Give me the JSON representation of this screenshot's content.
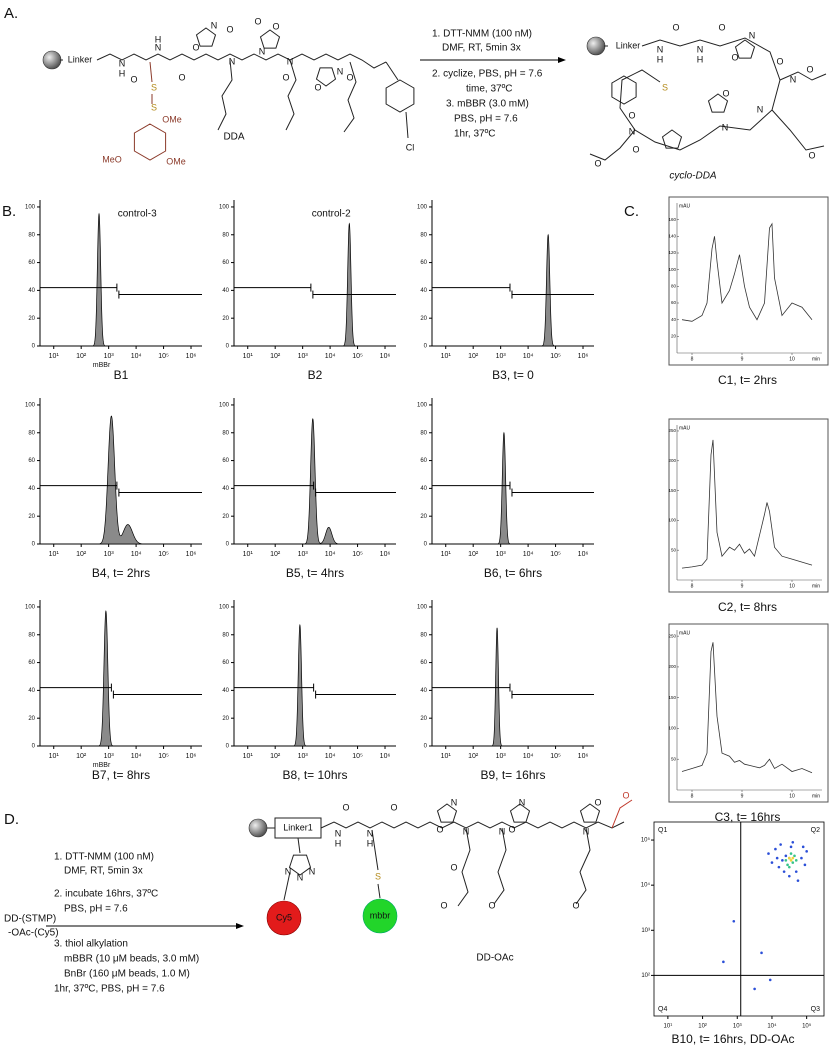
{
  "panel_a": {
    "label": "A.",
    "steps": [
      "1. DTT-NMM (100 nM)",
      "DMF, RT, 5min 3x",
      "2. cyclize, PBS, pH = 7.6",
      "time, 37ºC",
      "3. mBBR (3.0 mM)",
      "PBS, pH = 7.6",
      "1hr,  37ºC"
    ],
    "reactant": "DDA",
    "product": "cyclo-DDA",
    "reactant_labels": [
      "Linker",
      "N",
      "H",
      "O",
      "N",
      "H",
      "O",
      "N",
      "O",
      "N",
      "O",
      "O",
      "N",
      "N",
      "O",
      "O",
      "N",
      "O",
      "O",
      "S",
      "S",
      "OMe",
      "MeO",
      "OMe",
      "Cl"
    ],
    "product_labels": [
      "Linker",
      "N",
      "H",
      "O",
      "N",
      "H",
      "O",
      "N",
      "O",
      "S",
      "O",
      "N",
      "O",
      "N",
      "O",
      "N",
      "O",
      "N",
      "O",
      "O",
      "O"
    ]
  },
  "panel_b": {
    "label": "B.",
    "xlim": [
      0.5,
      6.4
    ],
    "ylim": [
      0,
      105
    ],
    "xticks": [
      {
        "value": 1,
        "label": "10¹"
      },
      {
        "value": 2,
        "label": "10²"
      },
      {
        "value": 3,
        "label": "10³"
      },
      {
        "value": 4,
        "label": "10⁴"
      },
      {
        "value": 5,
        "label": "10⁵"
      },
      {
        "value": 6,
        "label": "10⁶"
      }
    ],
    "yticks": [
      0,
      20,
      40,
      60,
      80,
      100
    ],
    "gate_levels": [
      42,
      37
    ],
    "color": "#8a8a8a",
    "plots": [
      {
        "caption": "B1",
        "inner_label": "control-3",
        "axis_label": "mBBr",
        "center": 2.65,
        "height": 95,
        "spread": 0.06,
        "split": 3.3
      },
      {
        "caption": "B2",
        "inner_label": "control-2",
        "center": 4.7,
        "height": 88,
        "spread": 0.06,
        "split": 3.3
      },
      {
        "caption": "B3, t= 0",
        "center": 4.73,
        "height": 80,
        "spread": 0.06,
        "split": 3.34
      },
      {
        "caption": "B4, t= 2hrs",
        "center": 3.1,
        "height": 92,
        "spread": 0.12,
        "split": 3.3,
        "shoulder": {
          "center": 3.7,
          "height": 14
        }
      },
      {
        "caption": "B5, t= 4hrs",
        "center": 3.37,
        "height": 90,
        "spread": 0.08,
        "split": 3.4,
        "shoulder": {
          "center": 3.95,
          "height": 12
        }
      },
      {
        "caption": "B6, t= 6hrs",
        "center": 3.12,
        "height": 80,
        "spread": 0.06,
        "split": 3.34
      },
      {
        "caption": "B7, t= 8hrs",
        "axis_label": "mBBr",
        "center": 2.9,
        "height": 97,
        "spread": 0.07,
        "split": 3.1
      },
      {
        "caption": "B8, t= 10hrs",
        "center": 2.9,
        "height": 87,
        "spread": 0.06,
        "split": 3.4
      },
      {
        "caption": "B9, t= 16hrs",
        "center": 2.87,
        "height": 85,
        "spread": 0.05,
        "split": 3.34
      }
    ]
  },
  "panel_c": {
    "label": "C.",
    "y_unit": "mAU",
    "x_unit": "min",
    "xlim": [
      7.7,
      10.6
    ],
    "xticks": [
      8,
      9,
      10
    ],
    "color": "#333333",
    "plots": [
      {
        "caption": "C1, t= 2hrs",
        "ylim": [
          0,
          180
        ],
        "yticks": [
          20,
          40,
          60,
          80,
          100,
          120,
          140,
          160
        ],
        "x": [
          7.8,
          8.0,
          8.2,
          8.3,
          8.4,
          8.45,
          8.5,
          8.6,
          8.75,
          8.85,
          8.95,
          9.05,
          9.15,
          9.3,
          9.45,
          9.55,
          9.6,
          9.65,
          9.8,
          10.0,
          10.2,
          10.4
        ],
        "values": [
          40,
          38,
          45,
          60,
          125,
          140,
          110,
          60,
          75,
          95,
          118,
          80,
          55,
          40,
          60,
          150,
          155,
          90,
          45,
          60,
          55,
          40
        ]
      },
      {
        "caption": "C2, t= 8hrs",
        "ylim": [
          0,
          260
        ],
        "yticks": [
          50,
          100,
          150,
          200,
          250
        ],
        "x": [
          7.8,
          8.0,
          8.2,
          8.3,
          8.38,
          8.42,
          8.5,
          8.6,
          8.75,
          8.85,
          8.95,
          9.05,
          9.15,
          9.25,
          9.35,
          9.45,
          9.5,
          9.55,
          9.65,
          9.8,
          10.0,
          10.2,
          10.4
        ],
        "values": [
          20,
          22,
          25,
          35,
          210,
          235,
          80,
          40,
          55,
          50,
          60,
          45,
          52,
          40,
          75,
          110,
          130,
          115,
          55,
          40,
          35,
          30,
          25
        ]
      },
      {
        "caption": "C3, t= 16hrs",
        "ylim": [
          0,
          260
        ],
        "yticks": [
          50,
          100,
          150,
          200,
          250
        ],
        "x": [
          7.8,
          8.0,
          8.2,
          8.3,
          8.38,
          8.42,
          8.5,
          8.6,
          8.75,
          8.85,
          8.95,
          9.05,
          9.15,
          9.25,
          9.35,
          9.45,
          9.5,
          9.55,
          9.65,
          9.8,
          10.0,
          10.2,
          10.4
        ],
        "values": [
          30,
          35,
          40,
          60,
          225,
          240,
          120,
          60,
          55,
          45,
          48,
          42,
          40,
          38,
          36,
          40,
          45,
          50,
          35,
          42,
          30,
          35,
          28
        ]
      }
    ]
  },
  "panel_d": {
    "label": "D.",
    "reactant": [
      "DD-(STMP)",
      "-OAc-(Cy5)"
    ],
    "steps": [
      "1. DTT-NMM (100 nM)",
      "DMF, RT, 5min 3x",
      "2. incubate 16hrs, 37ºC",
      "PBS, pH = 7.6",
      "3. thiol alkylation",
      "mBBR (10 μM beads, 3.0 mM)",
      "BnBr (160 μM beads, 1.0 M)",
      "1hr, 37ºC, PBS, pH = 7.6"
    ],
    "product": "DD-OAc",
    "product_labels": [
      "Linker1",
      "N",
      "H",
      "O",
      "N",
      "H",
      "O",
      "N",
      "O",
      "N",
      "O",
      "O",
      "N",
      "O",
      "N",
      "O",
      "O",
      "N",
      "O",
      "N",
      "N",
      "N",
      "S",
      "Cy5",
      "mbbr"
    ],
    "scatter": {
      "caption": "B10, t= 16hrs, DD-OAc",
      "xlim": [
        0.6,
        5.5
      ],
      "ylim": [
        1.1,
        5.4
      ],
      "xticks": [
        {
          "value": 1,
          "label": "10¹"
        },
        {
          "value": 2,
          "label": "10²"
        },
        {
          "value": 3,
          "label": "10³"
        },
        {
          "value": 4,
          "label": "10⁴"
        },
        {
          "value": 5,
          "label": "10⁵"
        }
      ],
      "yticks": [
        {
          "value": 2,
          "label": "10²"
        },
        {
          "value": 3,
          "label": "10³"
        },
        {
          "value": 4,
          "label": "10⁴"
        },
        {
          "value": 5,
          "label": "10⁵"
        }
      ],
      "quadrant_x": 3.1,
      "quadrant_y": 2.0,
      "quadrants": [
        "Q1",
        "Q2",
        "Q3",
        "Q4"
      ],
      "series": [
        {
          "color": "#2b4fd8",
          "x": [
            3.9,
            4.0,
            4.1,
            4.2,
            4.25,
            4.35,
            4.5,
            4.6,
            4.7,
            4.85,
            4.95,
            5.0,
            4.4,
            4.55,
            4.15,
            4.75,
            4.3,
            4.9,
            2.9,
            3.7,
            3.95,
            2.6,
            3.5
          ],
          "y": [
            4.7,
            4.5,
            4.8,
            4.4,
            4.9,
            4.3,
            4.2,
            4.95,
            4.3,
            4.6,
            4.45,
            4.75,
            4.65,
            4.85,
            4.6,
            4.1,
            4.55,
            4.85,
            3.2,
            2.5,
            1.9,
            2.3,
            1.7
          ]
        },
        {
          "color": "#37c48a",
          "x": [
            4.4,
            4.5,
            4.6,
            4.55,
            4.45,
            4.65,
            4.7,
            4.5
          ],
          "y": [
            4.55,
            4.6,
            4.5,
            4.7,
            4.45,
            4.65,
            4.55,
            4.4
          ]
        },
        {
          "color": "#f2d43a",
          "x": [
            4.55,
            4.6,
            4.5
          ],
          "y": [
            4.55,
            4.6,
            4.6
          ]
        }
      ]
    }
  }
}
